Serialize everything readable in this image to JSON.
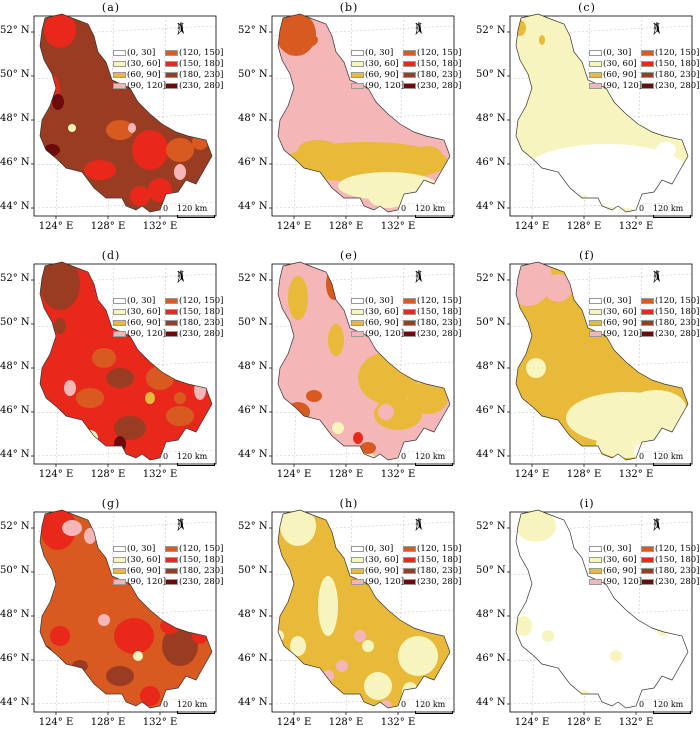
{
  "panels": [
    {
      "label": "(a)",
      "fill": "#9a3c22",
      "blobs": [
        {
          "c": "#e8281a"
        },
        {
          "c": "#e8281a"
        },
        {
          "c": "#e8281a"
        },
        {
          "c": "#d85a20"
        },
        {
          "c": "#d85a20"
        },
        {
          "c": "#e8281a"
        },
        {
          "c": "#e8281a"
        },
        {
          "c": "#f4b6b6"
        },
        {
          "c": "#f4b6b6"
        },
        {
          "c": "#6b0b0b"
        },
        {
          "c": "#6b0b0b"
        },
        {
          "c": "#d85a20"
        },
        {
          "c": "#f7f5bd"
        },
        {
          "c": "#e8281a"
        }
      ]
    },
    {
      "label": "(b)",
      "fill": "#f4b6b6",
      "blobs": [
        {
          "c": "#d85a20"
        },
        {
          "c": "#e9b93a"
        },
        {
          "c": "#f7f5bd"
        },
        {
          "c": "#e9b93a"
        },
        {
          "c": "#d85a20"
        },
        {
          "c": "#f4b6b6"
        },
        {
          "c": "#f7f5bd"
        },
        {
          "c": "#e9b93a"
        }
      ]
    },
    {
      "label": "(c)",
      "fill": "#f7f5bd",
      "blobs": [
        {
          "c": "#ffffff"
        },
        {
          "c": "#ffffff"
        },
        {
          "c": "#e9b93a"
        },
        {
          "c": "#e9b93a"
        },
        {
          "c": "#ffffff"
        },
        {
          "c": "#ffffff"
        },
        {
          "c": "#ffffff"
        },
        {
          "c": "#f7f5bd"
        },
        {
          "c": "#ffffff"
        }
      ]
    },
    {
      "label": "(d)",
      "fill": "#e8281a",
      "blobs": [
        {
          "c": "#9a3c22"
        },
        {
          "c": "#9a3c22"
        },
        {
          "c": "#d85a20"
        },
        {
          "c": "#d85a20"
        },
        {
          "c": "#d85a20"
        },
        {
          "c": "#9a3c22"
        },
        {
          "c": "#f4b6b6"
        },
        {
          "c": "#f4b6b6"
        },
        {
          "c": "#d85a20"
        },
        {
          "c": "#6b0b0b"
        },
        {
          "c": "#e9b93a"
        },
        {
          "c": "#9a3c22"
        },
        {
          "c": "#d85a20"
        },
        {
          "c": "#f7f5bd"
        }
      ]
    },
    {
      "label": "(e)",
      "fill": "#f4b6b6",
      "blobs": [
        {
          "c": "#e9b93a"
        },
        {
          "c": "#e9b93a"
        },
        {
          "c": "#e9b93a"
        },
        {
          "c": "#e9b93a"
        },
        {
          "c": "#d85a20"
        },
        {
          "c": "#d85a20"
        },
        {
          "c": "#d85a20"
        },
        {
          "c": "#e9b93a"
        },
        {
          "c": "#f7f5bd"
        },
        {
          "c": "#e8281a"
        },
        {
          "c": "#f4b6b6"
        },
        {
          "c": "#d85a20"
        },
        {
          "c": "#e9b93a"
        },
        {
          "c": "#f7f5bd"
        }
      ]
    },
    {
      "label": "(f)",
      "fill": "#e9b93a",
      "blobs": [
        {
          "c": "#f4b6b6"
        },
        {
          "c": "#f4b6b6"
        },
        {
          "c": "#f7f5bd"
        },
        {
          "c": "#f7f5bd"
        },
        {
          "c": "#f7f5bd"
        },
        {
          "c": "#ffffff"
        },
        {
          "c": "#f7f5bd"
        },
        {
          "c": "#e9b93a"
        }
      ]
    },
    {
      "label": "(g)",
      "fill": "#d85a20",
      "blobs": [
        {
          "c": "#e8281a"
        },
        {
          "c": "#e8281a"
        },
        {
          "c": "#f4b6b6"
        },
        {
          "c": "#f4b6b6"
        },
        {
          "c": "#9a3c22"
        },
        {
          "c": "#9a3c22"
        },
        {
          "c": "#e8281a"
        },
        {
          "c": "#e8281a"
        },
        {
          "c": "#6b0b0b"
        },
        {
          "c": "#f4b6b6"
        },
        {
          "c": "#e8281a"
        },
        {
          "c": "#9a3c22"
        },
        {
          "c": "#f7f5bd"
        },
        {
          "c": "#e8281a"
        }
      ]
    },
    {
      "label": "(h)",
      "fill": "#e9b93a",
      "blobs": [
        {
          "c": "#f7f5bd"
        },
        {
          "c": "#f7f5bd"
        },
        {
          "c": "#f7f5bd"
        },
        {
          "c": "#f7f5bd"
        },
        {
          "c": "#f4b6b6"
        },
        {
          "c": "#e9b93a"
        },
        {
          "c": "#f7f5bd"
        },
        {
          "c": "#f4b6b6"
        },
        {
          "c": "#f7f5bd"
        },
        {
          "c": "#f4b6b6"
        },
        {
          "c": "#f7f5bd"
        },
        {
          "c": "#f4b6b6"
        },
        {
          "c": "#f7f5bd"
        },
        {
          "c": "#ffffff"
        }
      ]
    },
    {
      "label": "(i)",
      "fill": "#ffffff",
      "blobs": [
        {
          "c": "#f7f5bd"
        },
        {
          "c": "#ffffff"
        },
        {
          "c": "#ffffff"
        },
        {
          "c": "#f7f5bd"
        },
        {
          "c": "#f7f5bd"
        },
        {
          "c": "#ffffff"
        },
        {
          "c": "#f7f5bd"
        },
        {
          "c": "#f7f5bd"
        },
        {
          "c": "#f7f5bd"
        }
      ]
    }
  ],
  "lat_labels": [
    "52° N",
    "50° N",
    "48° N",
    "46° N",
    "44° N"
  ],
  "lon_labels": [
    "124° E",
    "128° E",
    "132° E"
  ],
  "north_label": "N",
  "scale": {
    "zero": "0",
    "distance": "120 km"
  },
  "legend": [
    {
      "label": "(0, 30]",
      "color": "#ffffff"
    },
    {
      "label": "(30, 60]",
      "color": "#f7f5bd"
    },
    {
      "label": "(60, 90]",
      "color": "#e9b93a"
    },
    {
      "label": "(90, 120]",
      "color": "#f4b6b6"
    },
    {
      "label": "(120, 150]",
      "color": "#d85a20"
    },
    {
      "label": "(150, 180]",
      "color": "#e8281a"
    },
    {
      "label": "(180, 230]",
      "color": "#9a3c22"
    },
    {
      "label": "(230, 280]",
      "color": "#6b0b0b"
    }
  ]
}
